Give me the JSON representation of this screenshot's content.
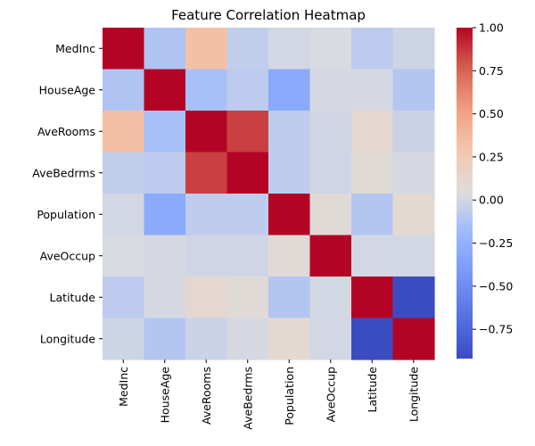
{
  "chart_data": {
    "type": "heatmap",
    "title": "Feature Correlation Heatmap",
    "rows": [
      "MedInc",
      "HouseAge",
      "AveRooms",
      "AveBedrms",
      "Population",
      "AveOccup",
      "Latitude",
      "Longitude"
    ],
    "cols": [
      "MedInc",
      "HouseAge",
      "AveRooms",
      "AveBedrms",
      "Population",
      "AveOccup",
      "Latitude",
      "Longitude"
    ],
    "values": [
      [
        1.0,
        -0.12,
        0.33,
        -0.06,
        0.0,
        0.02,
        -0.08,
        -0.02
      ],
      [
        -0.12,
        1.0,
        -0.15,
        -0.08,
        -0.3,
        0.01,
        0.01,
        -0.11
      ],
      [
        0.33,
        -0.15,
        1.0,
        0.85,
        -0.07,
        -0.01,
        0.11,
        -0.03
      ],
      [
        -0.06,
        -0.08,
        0.85,
        1.0,
        -0.07,
        -0.01,
        0.07,
        0.01
      ],
      [
        0.0,
        -0.3,
        -0.07,
        -0.07,
        1.0,
        0.07,
        -0.11,
        0.1
      ],
      [
        0.02,
        0.01,
        -0.01,
        -0.01,
        0.07,
        1.0,
        0.0,
        0.0
      ],
      [
        -0.08,
        0.01,
        0.11,
        0.07,
        -0.11,
        0.0,
        1.0,
        -0.92
      ],
      [
        -0.02,
        -0.11,
        -0.03,
        0.01,
        0.1,
        0.0,
        -0.92,
        1.0
      ]
    ],
    "colorbar": {
      "colormap": "coolwarm",
      "range": [
        -0.92,
        1.0
      ],
      "ticks": [
        1.0,
        0.75,
        0.5,
        0.25,
        0.0,
        -0.25,
        -0.5,
        -0.75
      ],
      "tick_labels": [
        "1.00",
        "0.75",
        "0.50",
        "0.25",
        "0.00",
        "−0.25",
        "−0.50",
        "−0.75"
      ]
    },
    "grid": false,
    "legend": "colorbar-right"
  }
}
